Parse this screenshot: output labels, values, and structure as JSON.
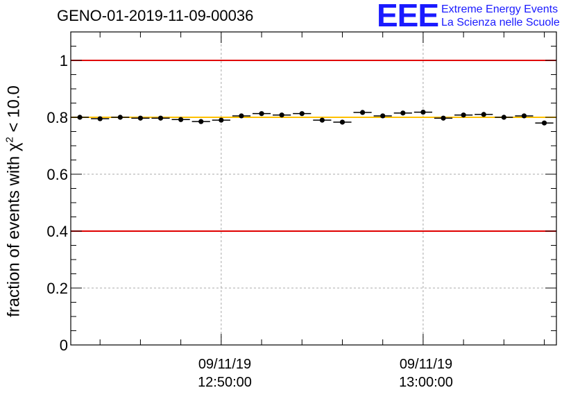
{
  "chart_data": {
    "type": "scatter",
    "title": "GENO-01-2019-11-09-00036",
    "ylabel_main": "fraction of events with χ",
    "ylabel_sup": "2",
    "ylabel_tail": " < 10.0",
    "xlabel": "",
    "ylim": [
      0,
      1.1
    ],
    "yticks": [
      0,
      0.2,
      0.4,
      0.6,
      0.8,
      1
    ],
    "ytick_labels": [
      "0",
      "0.2",
      "0.4",
      "0.6",
      "0.8",
      "1"
    ],
    "xlim_minutes": [
      -7.45,
      16.6
    ],
    "xtick_labels": [
      {
        "date": "09/11/19",
        "time": "12:50:00",
        "minutes": 0
      },
      {
        "date": "09/11/19",
        "time": "13:00:00",
        "minutes": 10
      }
    ],
    "series": [
      {
        "name": "fraction",
        "x_minutes": [
          -7,
          -6,
          -5,
          -4,
          -3,
          -2,
          -1,
          0,
          1,
          2,
          3,
          4,
          5,
          6,
          7,
          8,
          9,
          10,
          11,
          12,
          13,
          14,
          15,
          16
        ],
        "y": [
          0.8,
          0.795,
          0.8,
          0.797,
          0.797,
          0.792,
          0.785,
          0.79,
          0.805,
          0.813,
          0.808,
          0.813,
          0.79,
          0.783,
          0.817,
          0.805,
          0.815,
          0.818,
          0.797,
          0.808,
          0.81,
          0.8,
          0.805,
          0.78
        ],
        "xerr_minutes": 0.45
      }
    ],
    "reference_lines": [
      {
        "y": 1.0,
        "color": "#e00000"
      },
      {
        "y": 0.4,
        "color": "#e00000"
      },
      {
        "y": 0.8,
        "color": "#ffc000"
      }
    ]
  },
  "logo": {
    "mark": "EEE",
    "line1": "Extreme Energy Events",
    "line2": "La Scienza nelle Scuole",
    "color": "#1a1aff"
  }
}
